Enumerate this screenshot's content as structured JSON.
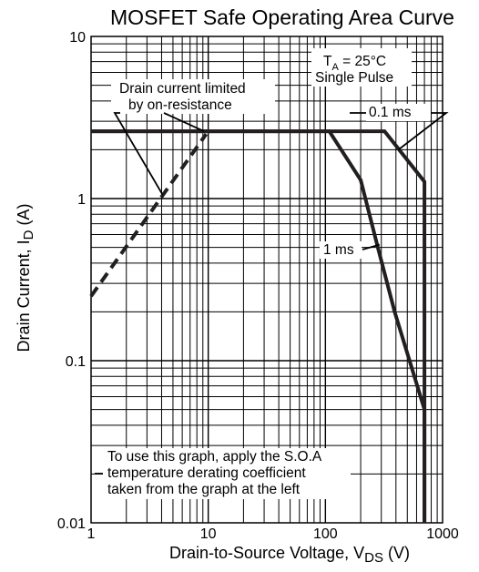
{
  "chart_data": {
    "type": "line",
    "title": "MOSFET Safe Operating Area Curve",
    "xlabel": {
      "main": "Drain-to-Source Voltage, V",
      "sub": "DS",
      "tail": " (V)"
    },
    "ylabel": {
      "main": "Drain Current, I",
      "sub": "D",
      "tail": " (A)"
    },
    "xscale": "log",
    "yscale": "log",
    "xlim": [
      1,
      1000
    ],
    "ylim": [
      0.01,
      10
    ],
    "grid": true,
    "x_ticks": [
      "1",
      "10",
      "100",
      "1000"
    ],
    "y_ticks": [
      "0.01",
      "0.1",
      "1",
      "10"
    ],
    "conditions": {
      "line1_main": "T",
      "line1_sub": "A",
      "line1_tail": " = 25°C",
      "line2": "Single Pulse"
    },
    "series": [
      {
        "name": "Drain current limited by on-resistance",
        "style": "dashed",
        "x": [
          1,
          9.6
        ],
        "y": [
          0.25,
          2.5
        ]
      },
      {
        "name": "1 ms",
        "style": "solid",
        "x": [
          1,
          108,
          200,
          280,
          390,
          700,
          700
        ],
        "y": [
          2.6,
          2.6,
          1.3,
          0.5,
          0.2,
          0.05,
          0.01
        ]
      },
      {
        "name": "0.1 ms",
        "style": "solid",
        "x": [
          1,
          320,
          700,
          700
        ],
        "y": [
          2.6,
          2.6,
          1.27,
          0.01
        ]
      }
    ],
    "annotations": {
      "ron_line1": "Drain current limited",
      "ron_line2": "by on-resistance",
      "label_1ms": "1 ms",
      "label_01ms": "0.1 ms",
      "note_line1": "To use this graph, apply the S.O.A",
      "note_line2": "temperature derating coefficient",
      "note_line3": "taken from the graph at the left"
    }
  }
}
